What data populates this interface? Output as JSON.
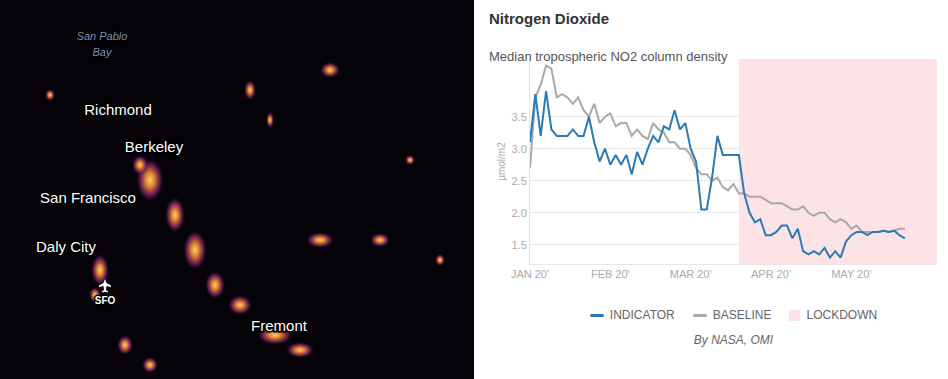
{
  "map": {
    "water_label": [
      "San Pablo",
      "Bay"
    ],
    "places": [
      "Richmond",
      "Berkeley",
      "San Francisco",
      "Daly City",
      "Fremont"
    ],
    "airport": "SFO"
  },
  "chart_data": {
    "type": "line",
    "title": "Nitrogen Dioxide",
    "subtitle": "Median tropospheric NO2 column density",
    "ylabel": "µmol/m2",
    "source": "By NASA, OMI",
    "categories": [
      "JAN 20'",
      null,
      null,
      null,
      null,
      null,
      null,
      null,
      null,
      null,
      null,
      null,
      null,
      null,
      null,
      "FEB 20'",
      null,
      null,
      null,
      null,
      null,
      null,
      null,
      null,
      null,
      null,
      null,
      null,
      null,
      null,
      "MAR 20'",
      null,
      null,
      null,
      null,
      null,
      null,
      null,
      null,
      null,
      null,
      null,
      null,
      null,
      null,
      "APR 20'",
      null,
      null,
      null,
      null,
      null,
      null,
      null,
      null,
      null,
      null,
      null,
      null,
      null,
      null,
      "MAY 20'",
      null,
      null,
      null,
      null,
      null,
      null,
      null,
      null,
      null,
      null,
      null,
      null,
      null,
      null,
      null,
      null
    ],
    "series": [
      {
        "name": "INDICATOR",
        "color": "#2a7ab8",
        "values": [
          3.1,
          3.85,
          3.2,
          3.9,
          3.3,
          3.2,
          3.2,
          3.2,
          3.3,
          3.2,
          3.2,
          3.5,
          3.1,
          2.8,
          3.0,
          2.75,
          2.9,
          2.75,
          2.9,
          2.6,
          2.95,
          2.75,
          3.0,
          3.2,
          3.1,
          3.35,
          3.3,
          3.6,
          3.3,
          3.4,
          3.0,
          2.8,
          2.05,
          2.05,
          2.55,
          3.2,
          2.9,
          2.9,
          2.9,
          2.9,
          2.3,
          2.0,
          1.85,
          1.9,
          1.65,
          1.65,
          1.7,
          1.8,
          1.8,
          1.6,
          1.75,
          1.4,
          1.35,
          1.4,
          1.35,
          1.45,
          1.3,
          1.4,
          1.3,
          1.55,
          1.65,
          1.7,
          1.7,
          1.65,
          1.7,
          1.7,
          1.72,
          1.7,
          1.72,
          1.65,
          1.6,
          null,
          null,
          null,
          null,
          null,
          null
        ]
      },
      {
        "name": "BASELINE",
        "color": "#a9a9a9",
        "values": [
          2.7,
          3.8,
          4.0,
          4.3,
          4.25,
          3.8,
          3.85,
          3.8,
          3.7,
          3.8,
          3.6,
          3.5,
          3.7,
          3.4,
          3.5,
          3.55,
          3.35,
          3.4,
          3.4,
          3.2,
          3.3,
          3.2,
          3.15,
          3.4,
          3.3,
          3.25,
          3.1,
          3.1,
          3.0,
          3.0,
          2.9,
          2.7,
          2.6,
          2.6,
          2.5,
          2.55,
          2.4,
          2.35,
          2.45,
          2.3,
          2.3,
          2.25,
          2.25,
          2.25,
          2.2,
          2.15,
          2.15,
          2.15,
          2.1,
          2.05,
          2.05,
          2.1,
          2.0,
          1.95,
          2.0,
          2.0,
          1.9,
          1.85,
          1.9,
          1.85,
          1.75,
          1.8,
          1.7,
          1.7,
          1.7,
          1.7,
          1.72,
          1.7,
          1.72,
          1.75,
          1.75,
          null,
          null,
          null,
          null,
          null,
          null
        ]
      }
    ],
    "lockdown": {
      "name": "LOCKDOWN",
      "color": "#fde3e6",
      "from": 39,
      "to": 76
    },
    "ylim": [
      1.2,
      4.4
    ],
    "yticks": [
      1.5,
      {
        "value": 2,
        "label": "2.0"
      },
      2.5,
      {
        "value": 3,
        "label": "3.0"
      },
      3.5
    ],
    "grid": true,
    "legend": "bottom"
  }
}
